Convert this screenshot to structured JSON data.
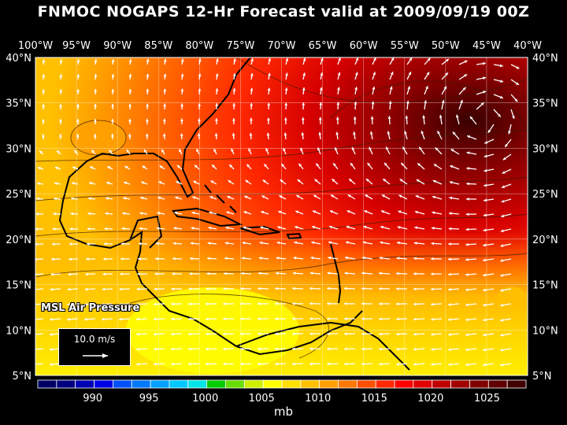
{
  "title": "FNMOC NOGAPS 12-Hr Forecast valid at 2009/09/19 00Z",
  "map": {
    "lon_labels": [
      "100°W",
      "95°W",
      "90°W",
      "85°W",
      "80°W",
      "75°W",
      "70°W",
      "65°W",
      "60°W",
      "55°W",
      "50°W",
      "45°W",
      "40°W"
    ],
    "lat_labels": [
      "40°N",
      "35°N",
      "30°N",
      "25°N",
      "20°N",
      "15°N",
      "10°N",
      "5°N"
    ],
    "overlay_label": "MSL Air Pressure",
    "reference_vector_label": "10.0 m/s"
  },
  "colorbar": {
    "tick_labels": [
      "990",
      "995",
      "1000",
      "1005",
      "1010",
      "1015",
      "1020",
      "1025"
    ],
    "unit": "mb",
    "colors": [
      "#000066",
      "#00007f",
      "#0000b4",
      "#0000e6",
      "#0050ff",
      "#0078ff",
      "#00a0ff",
      "#00c8ff",
      "#00e6e6",
      "#00cc00",
      "#66dd00",
      "#ccee00",
      "#ffff00",
      "#ffe000",
      "#ffc000",
      "#ffa000",
      "#ff7800",
      "#ff5000",
      "#ff2800",
      "#ff0000",
      "#e00000",
      "#c00000",
      "#a00000",
      "#800000",
      "#600000",
      "#400000"
    ]
  }
}
